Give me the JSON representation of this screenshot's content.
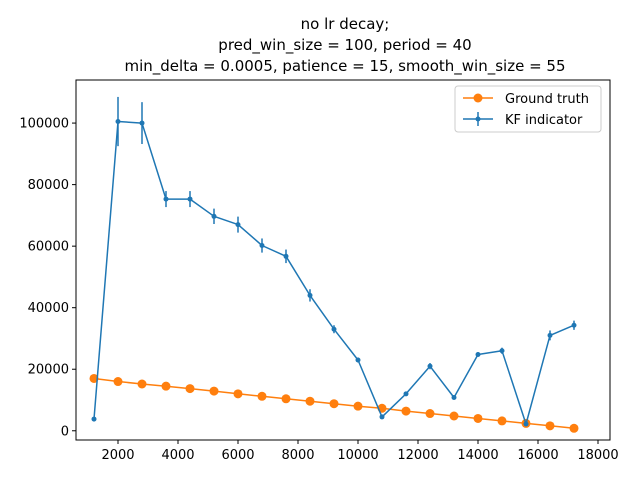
{
  "chart_data": {
    "type": "line",
    "title_lines": [
      "no lr decay;",
      "pred_win_size = 100, period = 40",
      "min_delta = 0.0005, patience = 15, smooth_win_size = 55"
    ],
    "xlabel": "",
    "ylabel": "",
    "xlim": [
      600,
      18400
    ],
    "ylim": [
      -3000,
      114000
    ],
    "xticks": [
      2000,
      4000,
      6000,
      8000,
      10000,
      12000,
      14000,
      16000,
      18000
    ],
    "yticks": [
      0,
      20000,
      40000,
      60000,
      80000,
      100000
    ],
    "grid": false,
    "legend_position": "top-right",
    "series": [
      {
        "name": "Ground truth",
        "color": "#ff7f0e",
        "marker": "circle",
        "x": [
          1200,
          2000,
          2800,
          3600,
          4400,
          5200,
          6000,
          6800,
          7600,
          8400,
          9200,
          10000,
          10800,
          11600,
          12400,
          13200,
          14000,
          14800,
          15600,
          16400,
          17200
        ],
        "y": [
          17000,
          16000,
          15200,
          14500,
          13700,
          12900,
          12000,
          11200,
          10400,
          9600,
          8800,
          8000,
          7300,
          6400,
          5600,
          4800,
          4000,
          3200,
          2400,
          1600,
          800
        ]
      },
      {
        "name": "KF indicator",
        "color": "#1f77b4",
        "marker": "dot",
        "errorbars": true,
        "x": [
          1200,
          2000,
          2800,
          3600,
          4400,
          5200,
          6000,
          6800,
          7600,
          8400,
          9200,
          10000,
          10800,
          11600,
          12400,
          13200,
          14000,
          14800,
          15600,
          16400,
          17200
        ],
        "y": [
          3800,
          100500,
          100000,
          75300,
          75300,
          69700,
          67000,
          60200,
          56700,
          44000,
          33000,
          23000,
          4500,
          12000,
          21000,
          10800,
          24800,
          26000,
          2200,
          31000,
          34300
        ],
        "yerr": [
          500,
          8000,
          6800,
          2600,
          2600,
          2500,
          2600,
          2300,
          2200,
          2000,
          1300,
          800,
          400,
          500,
          1000,
          500,
          700,
          1000,
          400,
          1600,
          1500
        ]
      }
    ]
  }
}
